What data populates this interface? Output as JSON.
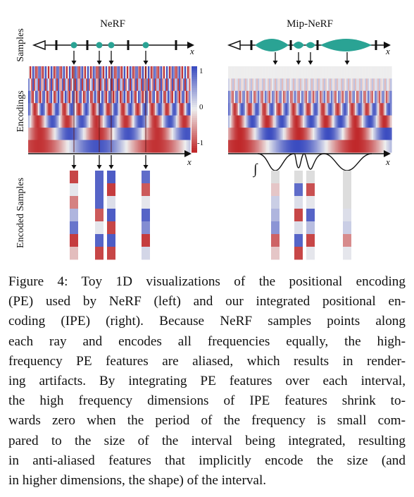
{
  "figure": {
    "left_title": "NeRF",
    "right_title": "Mip-NeRF",
    "row_labels": {
      "samples": "Samples",
      "encodings": "Encodings",
      "encoded_samples": "Encoded Samples"
    },
    "axis_label": "x",
    "colorbar_ticks": [
      "1",
      "0",
      "-1"
    ],
    "integral_symbol": "∫",
    "colors": {
      "marker": "#2aa394",
      "positive": "#3b4cc0",
      "negative": "#c0282a",
      "neutral": "#dddddd"
    }
  },
  "caption": {
    "lines": [
      "Figure 4: Toy 1D visualizations of the positional encoding",
      "(PE) used by NeRF (left) and our integrated positional en-",
      "coding (IPE) (right).  Because NeRF samples points along",
      "each ray and encodes all frequencies equally, the high-",
      "frequency PE features are aliased, which results in render-",
      "ing artifacts. By integrating PE features over each interval,",
      "the high frequency dimensions of IPE features shrink to-",
      "wards zero when the period of the frequency is small com-",
      "pared to the size of the interval being integrated, resulting",
      "in anti-aliased features that implicitly encode the size (and",
      "in higher dimensions, the shape) of the interval."
    ]
  }
}
